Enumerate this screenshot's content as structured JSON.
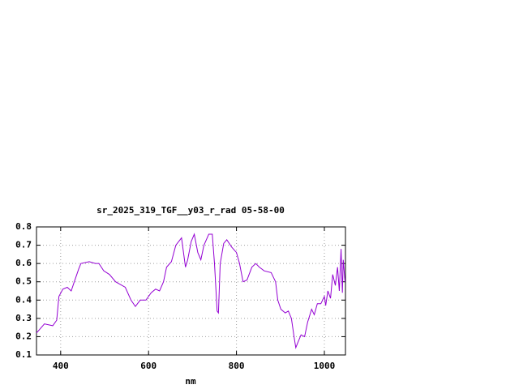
{
  "chart_data": {
    "type": "line",
    "title": "sr_2025_319_TGF__y03_r_rad 05-58-00",
    "x_label": "nm",
    "x": [
      345,
      363,
      382,
      391,
      396,
      405,
      415,
      424,
      431,
      441,
      446,
      465,
      479,
      487,
      498,
      511,
      525,
      547,
      560,
      570,
      581,
      594,
      606,
      616,
      625,
      634,
      641,
      652,
      662,
      675,
      684,
      689,
      697,
      704,
      712,
      719,
      726,
      737,
      745,
      750,
      756,
      759,
      763,
      771,
      778,
      789,
      800,
      807,
      815,
      824,
      835,
      844,
      852,
      863,
      879,
      889,
      894,
      901,
      911,
      918,
      925,
      931,
      935,
      940,
      947,
      955,
      962,
      971,
      977,
      984,
      992,
      1000,
      1003,
      1008,
      1014,
      1019,
      1025,
      1030,
      1034,
      1038,
      1041,
      1043,
      1047
    ],
    "values": [
      0.22,
      0.27,
      0.26,
      0.29,
      0.42,
      0.46,
      0.47,
      0.45,
      0.5,
      0.57,
      0.6,
      0.61,
      0.6,
      0.6,
      0.56,
      0.54,
      0.5,
      0.47,
      0.4,
      0.365,
      0.4,
      0.4,
      0.44,
      0.46,
      0.45,
      0.5,
      0.58,
      0.61,
      0.7,
      0.74,
      0.58,
      0.62,
      0.72,
      0.76,
      0.66,
      0.62,
      0.7,
      0.76,
      0.76,
      0.6,
      0.34,
      0.33,
      0.6,
      0.71,
      0.73,
      0.69,
      0.66,
      0.6,
      0.5,
      0.51,
      0.58,
      0.6,
      0.58,
      0.56,
      0.55,
      0.5,
      0.4,
      0.35,
      0.33,
      0.34,
      0.3,
      0.2,
      0.14,
      0.17,
      0.21,
      0.2,
      0.28,
      0.35,
      0.32,
      0.38,
      0.38,
      0.42,
      0.37,
      0.45,
      0.41,
      0.54,
      0.48,
      0.58,
      0.45,
      0.68,
      0.44,
      0.62,
      0.5
    ],
    "color": "#9400d3",
    "xlim": [
      345,
      1048
    ],
    "ylim": [
      0.1,
      0.8
    ],
    "xticks": [
      400,
      600,
      800,
      1000
    ],
    "yticks": [
      0.1,
      0.2,
      0.3,
      0.4,
      0.5,
      0.6,
      0.7,
      0.8
    ],
    "grid": true
  }
}
